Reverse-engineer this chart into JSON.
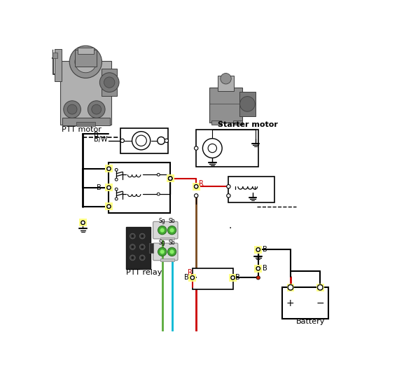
{
  "bg_color": "#ffffff",
  "figsize": [
    5.67,
    5.31
  ],
  "dpi": 100,
  "colors": {
    "black": "#000000",
    "red": "#cc0000",
    "brown": "#7a4a1e",
    "green": "#5aaa3a",
    "cyan": "#00b8d4",
    "yellow_bg": "#ffff88",
    "gray1": "#b0b0b0",
    "gray2": "#909090",
    "gray3": "#787878",
    "gray4": "#686868",
    "dark_gray": "#404040",
    "med_gray": "#a0a0a0"
  },
  "labels": {
    "ptt_motor": "PTT motor",
    "starter_motor": "Starter motor",
    "ptt_relay": "PTT relay",
    "battery": "Battery",
    "B": "B",
    "BW": "B/W",
    "R": "R"
  }
}
